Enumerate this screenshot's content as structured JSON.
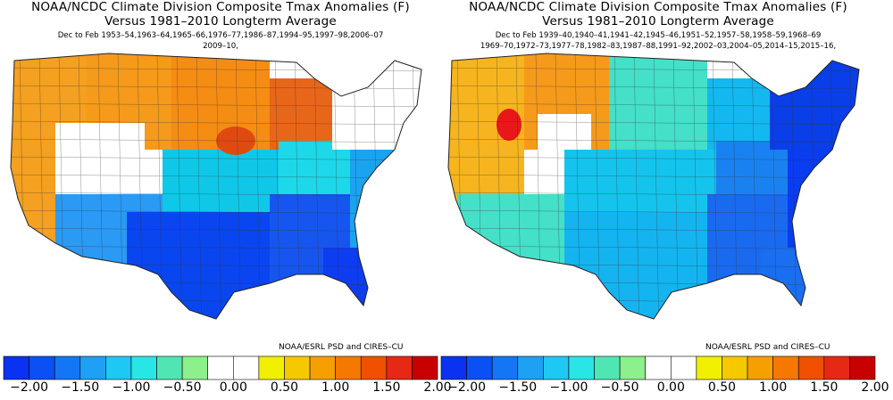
{
  "panels": [
    {
      "title_line1": "NOAA/NCDC Climate Division Composite Tmax Anomalies (F)",
      "title_line2": "Versus 1981–2010 Longterm Average",
      "period_line1": "Dec to Feb   1953–54,1963–64,1965–66,1976–77,1986–87,1994–95,1997–98,2006–07",
      "period_line2": "2009–10,",
      "credit": "NOAA/ESRL PSD and CIRES–CU",
      "pattern": "warm north, cold south",
      "colors": {
        "far_west": "#f4a020",
        "northwest": "#f59a1a",
        "north_central": "#f58c14",
        "upper_midwest": "#e8661a",
        "great_basin": "#ffffff",
        "southwest": "#2a9af5",
        "plains": "#0fc8e8",
        "texas": "#0a46f0",
        "southeast": "#1656ee",
        "mid_atlantic": "#1aa4f0",
        "northeast": "#ffffff",
        "great_lakes": "#1cd8e8",
        "florida": "#0e3cf0",
        "hotspot": "#e04a10"
      }
    },
    {
      "title_line1": "NOAA/NCDC Climate Division Composite Tmax Anomalies (F)",
      "title_line2": "Versus 1981–2010 Longterm Average",
      "period_line1": "Dec to Feb   1939–40,1940–41,1941–42,1945–46,1951–52,1957–58,1958–59,1968–69",
      "period_line2": "1969–70,1972–73,1977–78,1982–83,1987–88,1991–92,2002–03,2004–05,2014–15,2015–16,",
      "credit": "NOAA/ESRL PSD and CIRES–CU",
      "pattern": "warm northwest, cold east",
      "colors": {
        "far_west": "#f6b41e",
        "northwest": "#f59a1a",
        "north_central": "#44e0c8",
        "upper_midwest": "#14b8f0",
        "great_basin": "#ffffff",
        "southwest": "#44e0c8",
        "plains": "#14c4ec",
        "texas": "#14b4f0",
        "southeast": "#1a6af0",
        "mid_atlantic": "#0a3cf0",
        "northeast": "#0a3ee8",
        "great_lakes": "#1a82f0",
        "florida": "#1a6ef0",
        "hotspot": "#e81818"
      }
    }
  ],
  "colorbar": {
    "colors": [
      "#0a32f0",
      "#0a50f5",
      "#1476f5",
      "#1ea0f5",
      "#1ec8f5",
      "#28e6e6",
      "#50e6b4",
      "#8cf08c",
      "#ffffff",
      "#ffffff",
      "#f0f000",
      "#f5c800",
      "#f5a000",
      "#f57800",
      "#f05000",
      "#e62814",
      "#c80000"
    ],
    "ticks": [
      "−2.00",
      "−1.50",
      "−1.00",
      "−0.50",
      "0.00",
      "0.50",
      "1.00",
      "1.50",
      "2.00"
    ]
  }
}
